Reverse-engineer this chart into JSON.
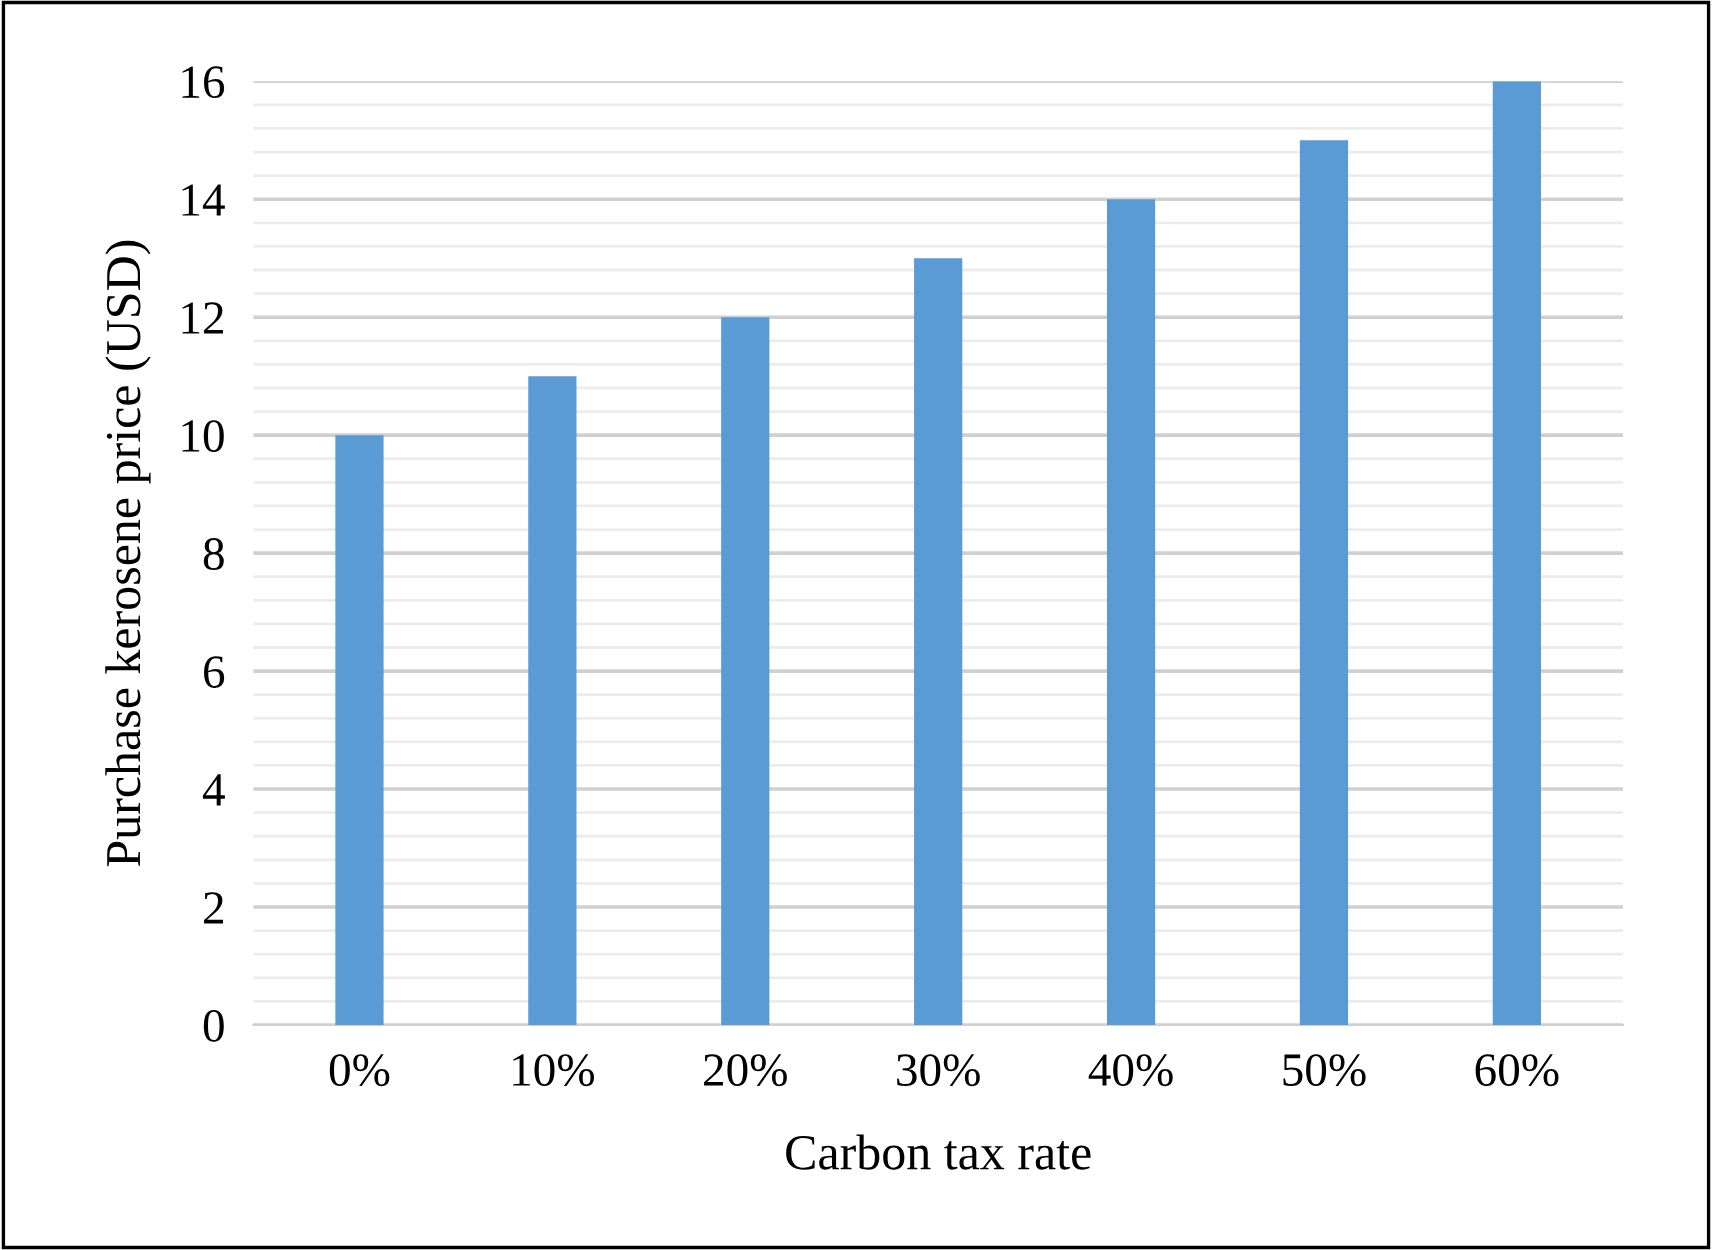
{
  "chart_data": {
    "type": "bar",
    "xlabel": "Carbon tax rate",
    "ylabel": "Purchase kerosene price (USD)",
    "categories": [
      "0%",
      "10%",
      "20%",
      "30%",
      "40%",
      "50%",
      "60%"
    ],
    "values": [
      10,
      11,
      12,
      13,
      14,
      15,
      16
    ],
    "color": "#5b9bd5",
    "ylim": [
      0,
      16
    ],
    "yticks": [
      0,
      2,
      4,
      6,
      8,
      10,
      12,
      14,
      16
    ],
    "grid": "y"
  }
}
